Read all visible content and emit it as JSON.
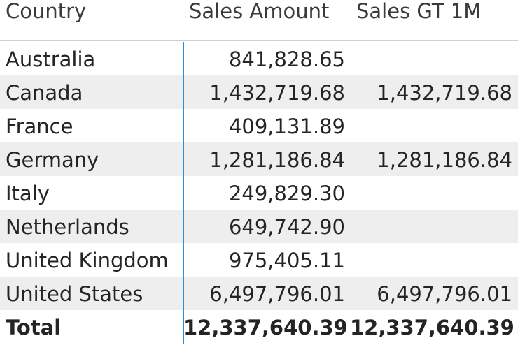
{
  "table": {
    "columns": {
      "country": "Country",
      "sales_amount": "Sales Amount",
      "sales_gt_1m": "Sales GT 1M"
    },
    "rows": [
      {
        "country": "Australia",
        "sales_amount": "841,828.65",
        "sales_gt_1m": ""
      },
      {
        "country": "Canada",
        "sales_amount": "1,432,719.68",
        "sales_gt_1m": "1,432,719.68"
      },
      {
        "country": "France",
        "sales_amount": "409,131.89",
        "sales_gt_1m": ""
      },
      {
        "country": "Germany",
        "sales_amount": "1,281,186.84",
        "sales_gt_1m": "1,281,186.84"
      },
      {
        "country": "Italy",
        "sales_amount": "249,829.30",
        "sales_gt_1m": ""
      },
      {
        "country": "Netherlands",
        "sales_amount": "649,742.90",
        "sales_gt_1m": ""
      },
      {
        "country": "United Kingdom",
        "sales_amount": "975,405.11",
        "sales_gt_1m": ""
      },
      {
        "country": "United States",
        "sales_amount": "6,497,796.01",
        "sales_gt_1m": "6,497,796.01"
      }
    ],
    "total": {
      "label": "Total",
      "sales_amount": "12,337,640.39",
      "sales_gt_1m": "12,337,640.39"
    }
  },
  "colors": {
    "alt_row_background": "#eeeeee",
    "column_separator": "#2f8ddd",
    "text": "#252423"
  }
}
